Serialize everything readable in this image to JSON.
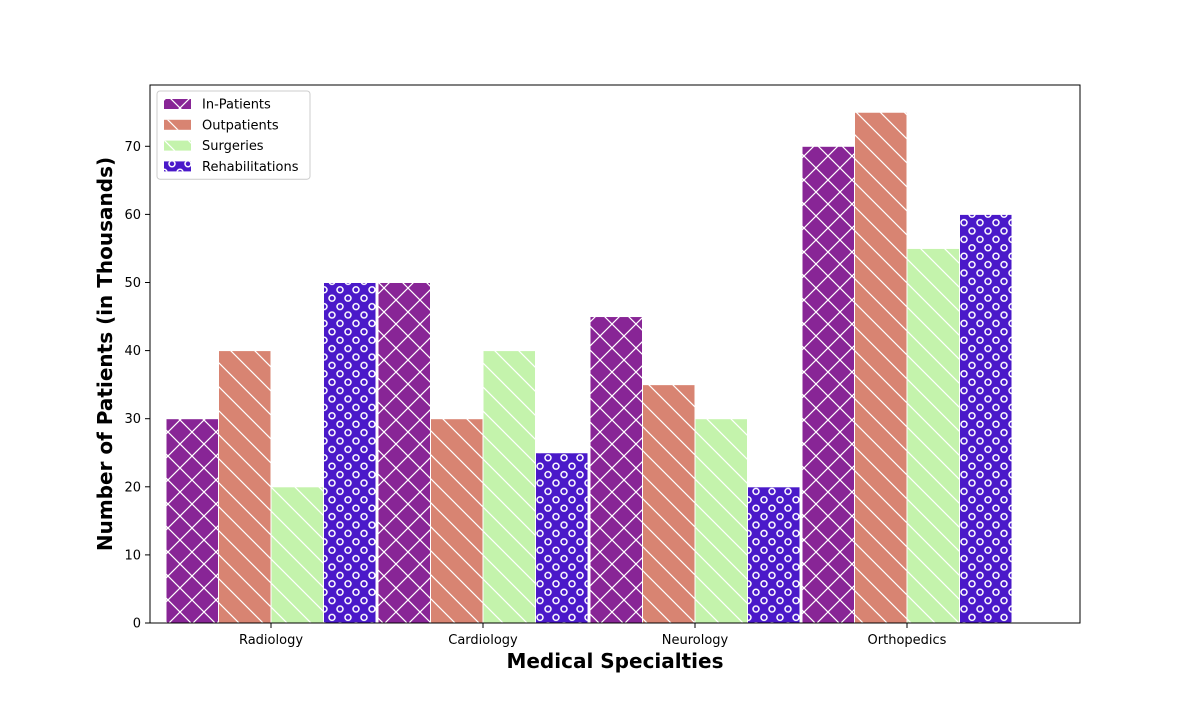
{
  "chart_data": {
    "type": "bar",
    "title": "",
    "xlabel": "Medical Specialties",
    "ylabel": "Number of Patients (in Thousands)",
    "categories": [
      "Radiology",
      "Cardiology",
      "Neurology",
      "Orthopedics"
    ],
    "series": [
      {
        "name": "In-Patients",
        "values": [
          30,
          50,
          45,
          70
        ],
        "color": "#882596",
        "pattern": "cross-hatch"
      },
      {
        "name": "Outpatients",
        "values": [
          40,
          30,
          35,
          75
        ],
        "color": "#d88472",
        "pattern": "backslash-hatch"
      },
      {
        "name": "Surgeries",
        "values": [
          20,
          40,
          30,
          55
        ],
        "color": "#c4f3ac",
        "pattern": "backslash-hatch"
      },
      {
        "name": "Rehabilitations",
        "values": [
          50,
          25,
          20,
          60
        ],
        "color": "#4a19c9",
        "pattern": "circles"
      }
    ],
    "ylim": [
      0,
      79
    ],
    "yticks": [
      "0",
      "10",
      "20",
      "30",
      "40",
      "50",
      "60",
      "70"
    ],
    "grid": false,
    "legend_position": "top-left"
  }
}
